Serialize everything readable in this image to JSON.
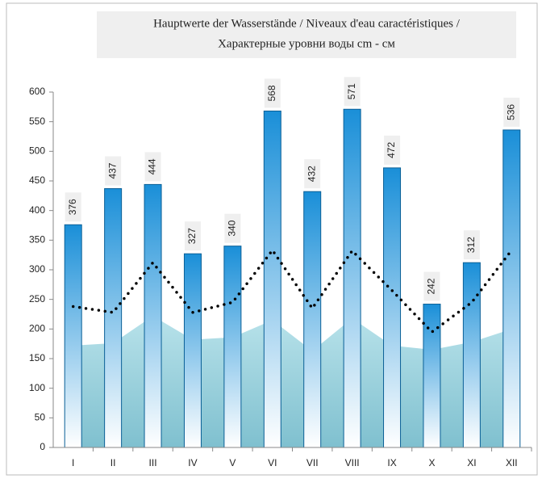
{
  "chart_data": {
    "type": "bar",
    "title": [
      "Hauptwerte der Wasserstände / Niveaux d'eau caractéristiques /",
      "Характерные уровни воды cm - см"
    ],
    "categories": [
      "I",
      "II",
      "III",
      "IV",
      "V",
      "VI",
      "VII",
      "VIII",
      "IX",
      "X",
      "XI",
      "XII"
    ],
    "series": [
      {
        "type": "bar",
        "color": "#1a8fd8",
        "values": [
          376,
          437,
          444,
          327,
          340,
          568,
          432,
          571,
          472,
          242,
          312,
          536
        ]
      },
      {
        "type": "area",
        "color": "#9fd3de",
        "values": [
          172,
          176,
          222,
          182,
          186,
          215,
          163,
          218,
          172,
          165,
          178,
          200
        ]
      },
      {
        "type": "line",
        "color": "#000000",
        "values": [
          238,
          228,
          312,
          228,
          245,
          333,
          235,
          332,
          265,
          195,
          245,
          333
        ]
      }
    ],
    "ylim": [
      0,
      600
    ],
    "yticks": [
      0,
      50,
      100,
      150,
      200,
      250,
      300,
      350,
      400,
      450,
      500,
      550,
      600
    ],
    "grid": false
  }
}
